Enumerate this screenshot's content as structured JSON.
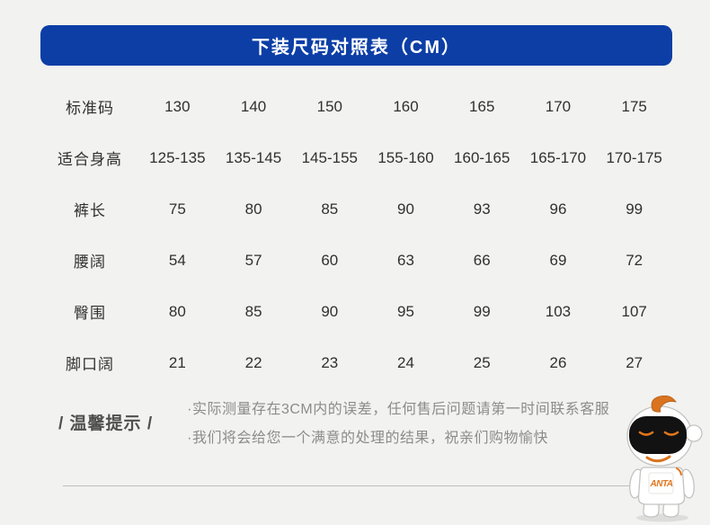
{
  "header": {
    "title": "下装尺码对照表（CM）"
  },
  "table": {
    "rows": [
      {
        "label": "标准码",
        "values": [
          "130",
          "140",
          "150",
          "160",
          "165",
          "170",
          "175"
        ]
      },
      {
        "label": "适合身高",
        "values": [
          "125-135",
          "135-145",
          "145-155",
          "155-160",
          "160-165",
          "165-170",
          "170-175"
        ]
      },
      {
        "label": "裤长",
        "values": [
          "75",
          "80",
          "85",
          "90",
          "93",
          "96",
          "99"
        ]
      },
      {
        "label": "腰阔",
        "values": [
          "54",
          "57",
          "60",
          "63",
          "66",
          "69",
          "72"
        ]
      },
      {
        "label": "臀围",
        "values": [
          "80",
          "85",
          "90",
          "95",
          "99",
          "103",
          "107"
        ]
      },
      {
        "label": "脚口阔",
        "values": [
          "21",
          "22",
          "23",
          "24",
          "25",
          "26",
          "27"
        ]
      }
    ]
  },
  "tips": {
    "label": "/ 温馨提示 /",
    "lines": [
      "·实际测量存在3CM内的误差，任何售后问题请第一时间联系客服",
      "·我们将会给您一个满意的处理的结果，祝亲们购物愉快"
    ]
  },
  "mascot": {
    "brand": "ANTA"
  },
  "colors": {
    "header_bg": "#0c3ea6",
    "accent_orange": "#e0761c",
    "page_bg": "#f2f2f0",
    "table_text": "#303030",
    "tips_text": "#8c8c8c"
  }
}
